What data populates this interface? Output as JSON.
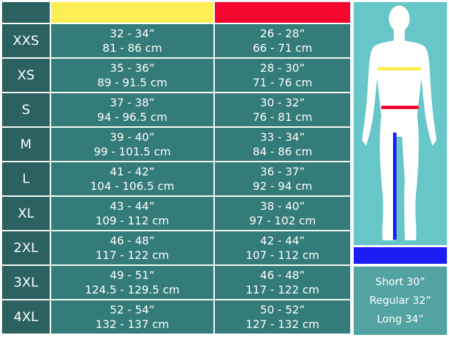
{
  "colors": {
    "chest": "#fdee55",
    "waist": "#f5062e",
    "inseam": "#1c1cf4"
  },
  "rows": [
    {
      "size": "XXS",
      "chest_in": "32 - 34”",
      "chest_cm": "81 - 86 cm",
      "waist_in": "26 - 28”",
      "waist_cm": "66 - 71 cm"
    },
    {
      "size": "XS",
      "chest_in": "35 - 36”",
      "chest_cm": "89 - 91.5 cm",
      "waist_in": "28 - 30”",
      "waist_cm": "71 - 76 cm"
    },
    {
      "size": "S",
      "chest_in": "37 - 38”",
      "chest_cm": "94 - 96.5 cm",
      "waist_in": "30 - 32”",
      "waist_cm": "76 - 81 cm"
    },
    {
      "size": "M",
      "chest_in": "39 - 40”",
      "chest_cm": "99 - 101.5 cm",
      "waist_in": "33 - 34”",
      "waist_cm": "84 - 86 cm"
    },
    {
      "size": "L",
      "chest_in": "41 - 42”",
      "chest_cm": "104 - 106.5 cm",
      "waist_in": "36 - 37”",
      "waist_cm": "92 - 94 cm"
    },
    {
      "size": "XL",
      "chest_in": "43 - 44”",
      "chest_cm": "109 - 112 cm",
      "waist_in": "38 - 40”",
      "waist_cm": "97 - 102 cm"
    },
    {
      "size": "2XL",
      "chest_in": "46 - 48”",
      "chest_cm": "117 - 122 cm",
      "waist_in": "42 - 44”",
      "waist_cm": "107 - 112 cm"
    },
    {
      "size": "3XL",
      "chest_in": "49 - 51”",
      "chest_cm": "124.5 - 129.5 cm",
      "waist_in": "46 - 48”",
      "waist_cm": "117 - 122 cm"
    },
    {
      "size": "4XL",
      "chest_in": "52 - 54”",
      "chest_cm": "132 - 137 cm",
      "waist_in": "50 - 52”",
      "waist_cm": "127 - 132 cm"
    }
  ],
  "inseam": [
    "Short 30”",
    "Regular 32”",
    "Long 34”"
  ]
}
